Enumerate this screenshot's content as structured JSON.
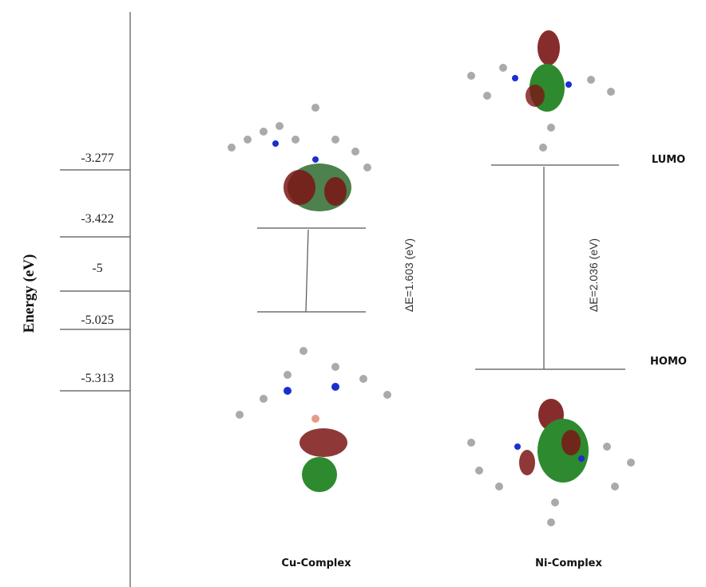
{
  "axis": {
    "title": "Energy (eV)",
    "levels": [
      "-3.277",
      "-3.422",
      "-5",
      "-5.025",
      "-5.313"
    ]
  },
  "gaps": [
    "ΔE=1.603 (eV)",
    "ΔE=2.036 (eV)"
  ],
  "orbitals": [
    "LUMO",
    "HOMO"
  ],
  "complexes": [
    "Cu-Complex",
    "Ni-Complex"
  ]
}
